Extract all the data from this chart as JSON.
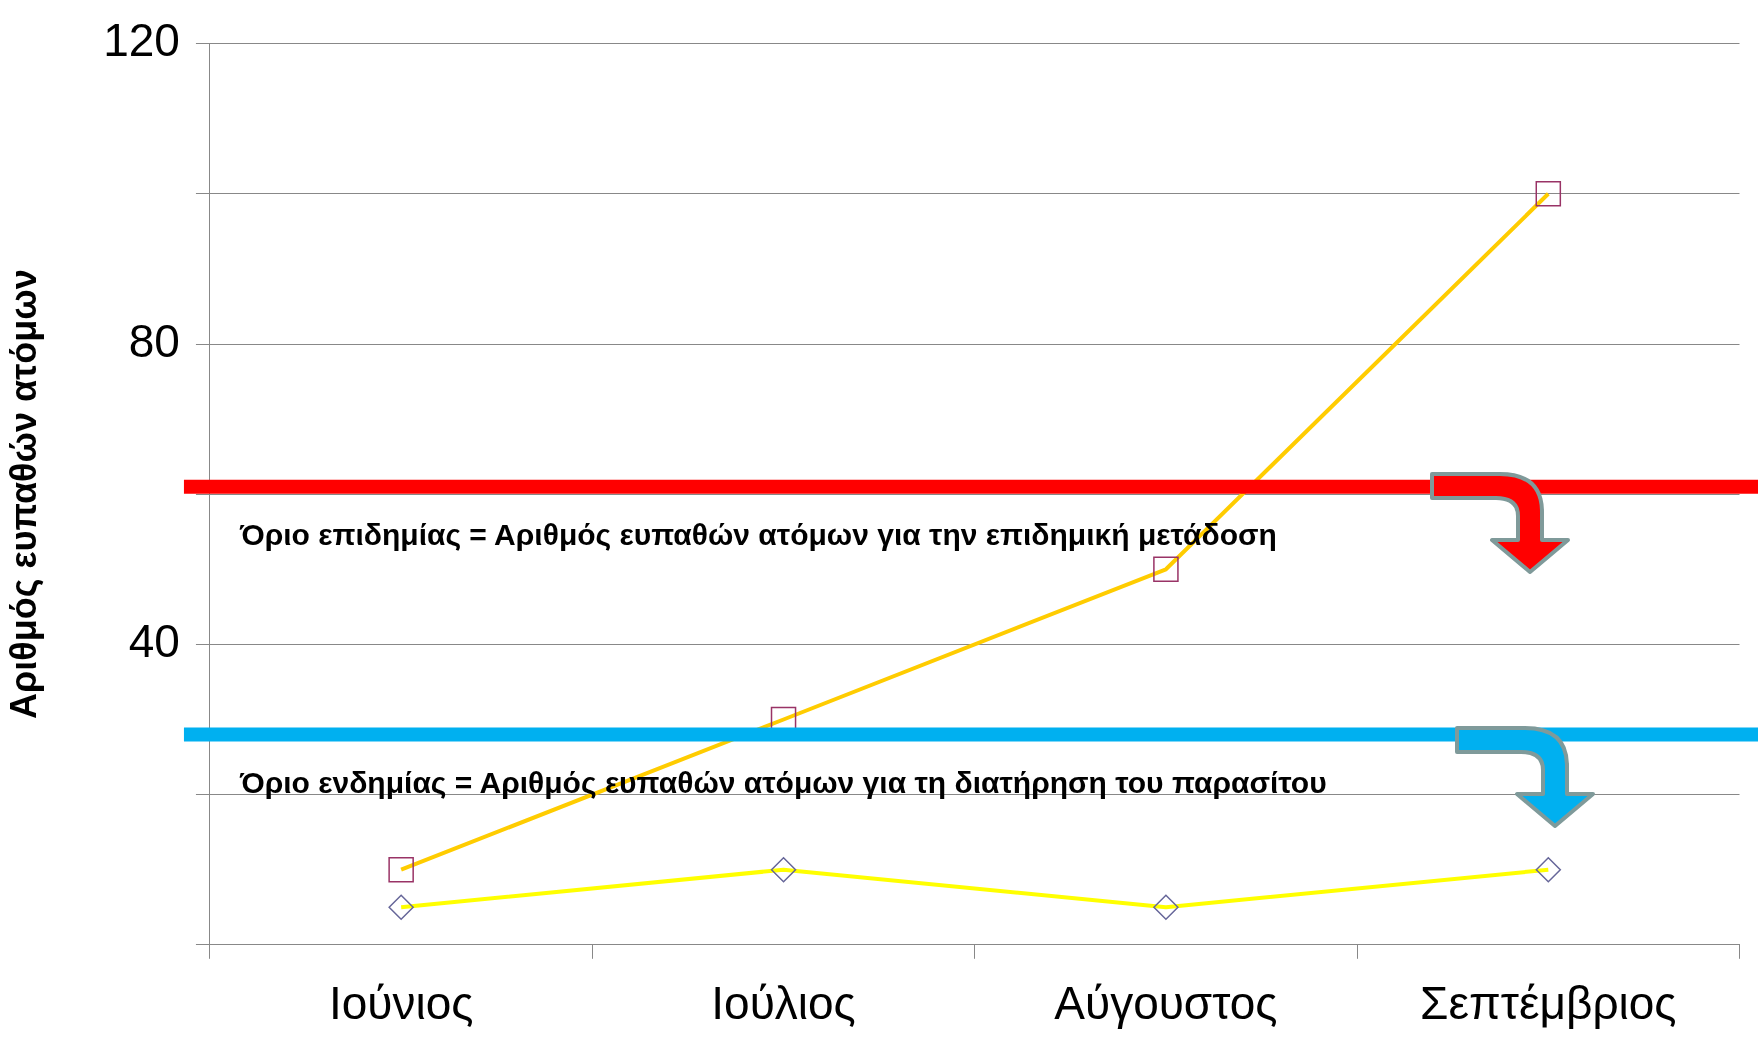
{
  "chart_data": {
    "type": "line",
    "ylabel": "Αριθμός ευπαθών ατόμων",
    "categories": [
      "Ιούνιος",
      "Ιούλιος",
      "Αύγουστος",
      "Σεπτέμβριος"
    ],
    "series": [
      {
        "color": "#ffcc00",
        "marker": "square",
        "values": [
          10,
          30,
          50,
          100
        ]
      },
      {
        "color": "#ffff00",
        "marker": "diamond",
        "values": [
          5,
          10,
          5,
          10
        ]
      }
    ],
    "ylim": [
      0,
      120
    ],
    "yticks": [
      {
        "value": 0,
        "label": null
      },
      {
        "value": 20,
        "label": null
      },
      40,
      {
        "value": 60,
        "label": null
      },
      80,
      {
        "value": 100,
        "label": null
      },
      120
    ],
    "grid": "y",
    "legend": false,
    "ref_lines": [
      {
        "axis": "y",
        "value": 61,
        "label": "Όριο επιδημίας = Αριθμός ευπαθών ατόμων για την επιδημική μετάδοση",
        "color": "#ff0000"
      },
      {
        "axis": "y",
        "value": 28,
        "label": "Όριο ενδημίας = Αριθμός ευπαθών ατόμων για τη διατήρηση του παρασίτου",
        "color": "#00b0f0"
      }
    ]
  }
}
